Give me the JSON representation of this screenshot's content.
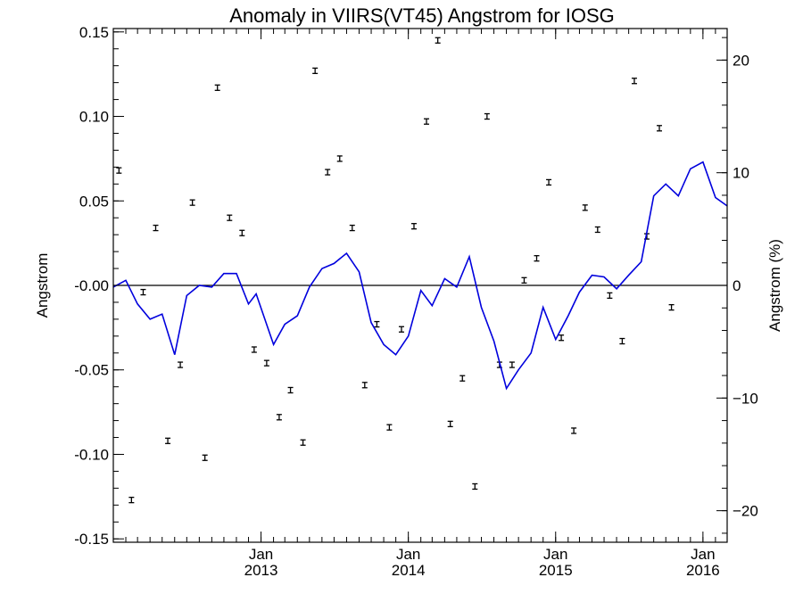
{
  "chart_data": {
    "type": "scatter",
    "title": "Anomaly in VIIRS(VT45) Angstrom for IOSG",
    "ylabel": "Angstrom",
    "ylabel_right": "Angstrom (%)",
    "xlabel": "",
    "ylim": [
      -0.152,
      0.152
    ],
    "ylim_right": [
      -22.8,
      22.8
    ],
    "xlim": [
      "2012-01-01",
      "2016-03-01"
    ],
    "y_ticks": [
      {
        "value": -0.15,
        "label": "-0.15"
      },
      {
        "value": -0.1,
        "label": "-0.10"
      },
      {
        "value": -0.05,
        "label": "-0.05"
      },
      {
        "value": 0.0,
        "label": "-0.00"
      },
      {
        "value": 0.05,
        "label": "0.05"
      },
      {
        "value": 0.1,
        "label": "0.10"
      },
      {
        "value": 0.15,
        "label": "0.15"
      }
    ],
    "y_ticks_right": [
      {
        "value": -20,
        "label": "−20"
      },
      {
        "value": -10,
        "label": "−10"
      },
      {
        "value": 0,
        "label": "0"
      },
      {
        "value": 10,
        "label": "10"
      },
      {
        "value": 20,
        "label": "20"
      }
    ],
    "x_ticks": [
      {
        "date": "2013-01-01",
        "label1": "Jan",
        "label2": "2013"
      },
      {
        "date": "2014-01-01",
        "label1": "Jan",
        "label2": "2014"
      },
      {
        "date": "2015-01-01",
        "label1": "Jan",
        "label2": "2015"
      },
      {
        "date": "2016-01-01",
        "label1": "Jan",
        "label2": "2016"
      }
    ],
    "reference_line": 0,
    "series": [
      {
        "kind": "points_errorbar",
        "color": "#000000",
        "points": [
          {
            "x": "2012-01-15",
            "y": 0.068
          },
          {
            "x": "2012-02-15",
            "y": -0.127
          },
          {
            "x": "2012-03-15",
            "y": -0.004
          },
          {
            "x": "2012-04-15",
            "y": 0.034
          },
          {
            "x": "2012-05-15",
            "y": -0.092
          },
          {
            "x": "2012-06-15",
            "y": -0.047
          },
          {
            "x": "2012-07-15",
            "y": 0.049
          },
          {
            "x": "2012-08-15",
            "y": -0.102
          },
          {
            "x": "2012-09-15",
            "y": 0.117
          },
          {
            "x": "2012-10-15",
            "y": 0.04
          },
          {
            "x": "2012-11-15",
            "y": 0.031
          },
          {
            "x": "2012-12-15",
            "y": -0.038
          },
          {
            "x": "2013-01-15",
            "y": -0.046
          },
          {
            "x": "2013-02-15",
            "y": -0.078
          },
          {
            "x": "2013-03-15",
            "y": -0.062
          },
          {
            "x": "2013-04-15",
            "y": -0.093
          },
          {
            "x": "2013-05-15",
            "y": 0.127
          },
          {
            "x": "2013-06-15",
            "y": 0.067
          },
          {
            "x": "2013-07-15",
            "y": 0.075
          },
          {
            "x": "2013-08-15",
            "y": 0.034
          },
          {
            "x": "2013-09-15",
            "y": -0.059
          },
          {
            "x": "2013-10-15",
            "y": -0.023
          },
          {
            "x": "2013-11-15",
            "y": -0.084
          },
          {
            "x": "2013-12-15",
            "y": -0.026
          },
          {
            "x": "2014-01-15",
            "y": 0.035
          },
          {
            "x": "2014-02-15",
            "y": 0.097
          },
          {
            "x": "2014-03-15",
            "y": 0.145
          },
          {
            "x": "2014-04-15",
            "y": -0.082
          },
          {
            "x": "2014-05-15",
            "y": -0.055
          },
          {
            "x": "2014-06-15",
            "y": -0.119
          },
          {
            "x": "2014-07-15",
            "y": 0.1
          },
          {
            "x": "2014-08-15",
            "y": -0.047
          },
          {
            "x": "2014-09-15",
            "y": -0.047
          },
          {
            "x": "2014-10-15",
            "y": 0.003
          },
          {
            "x": "2014-11-15",
            "y": 0.016
          },
          {
            "x": "2014-12-15",
            "y": 0.061
          },
          {
            "x": "2015-01-15",
            "y": -0.031
          },
          {
            "x": "2015-02-15",
            "y": -0.086
          },
          {
            "x": "2015-03-15",
            "y": 0.046
          },
          {
            "x": "2015-04-15",
            "y": 0.033
          },
          {
            "x": "2015-05-15",
            "y": -0.006
          },
          {
            "x": "2015-06-15",
            "y": -0.033
          },
          {
            "x": "2015-07-15",
            "y": 0.121
          },
          {
            "x": "2015-08-15",
            "y": 0.029
          },
          {
            "x": "2015-09-15",
            "y": 0.093
          },
          {
            "x": "2015-10-15",
            "y": -0.013
          }
        ]
      },
      {
        "kind": "line",
        "color": "#0000dd",
        "points": [
          {
            "x": "2012-01-01",
            "y": -0.001
          },
          {
            "x": "2012-02-01",
            "y": 0.003
          },
          {
            "x": "2012-03-01",
            "y": -0.011
          },
          {
            "x": "2012-04-01",
            "y": -0.02
          },
          {
            "x": "2012-05-01",
            "y": -0.017
          },
          {
            "x": "2012-06-01",
            "y": -0.041
          },
          {
            "x": "2012-07-01",
            "y": -0.006
          },
          {
            "x": "2012-08-01",
            "y": 0.0
          },
          {
            "x": "2012-09-01",
            "y": -0.001
          },
          {
            "x": "2012-10-01",
            "y": 0.007
          },
          {
            "x": "2012-11-01",
            "y": 0.007
          },
          {
            "x": "2012-12-01",
            "y": -0.011
          },
          {
            "x": "2012-12-20",
            "y": -0.005
          },
          {
            "x": "2013-02-01",
            "y": -0.035
          },
          {
            "x": "2013-03-01",
            "y": -0.023
          },
          {
            "x": "2013-04-01",
            "y": -0.018
          },
          {
            "x": "2013-05-01",
            "y": -0.001
          },
          {
            "x": "2013-06-01",
            "y": 0.01
          },
          {
            "x": "2013-07-01",
            "y": 0.013
          },
          {
            "x": "2013-08-01",
            "y": 0.019
          },
          {
            "x": "2013-09-01",
            "y": 0.008
          },
          {
            "x": "2013-10-01",
            "y": -0.022
          },
          {
            "x": "2013-11-01",
            "y": -0.035
          },
          {
            "x": "2013-12-01",
            "y": -0.041
          },
          {
            "x": "2014-01-01",
            "y": -0.03
          },
          {
            "x": "2014-02-01",
            "y": -0.003
          },
          {
            "x": "2014-03-01",
            "y": -0.012
          },
          {
            "x": "2014-04-01",
            "y": 0.004
          },
          {
            "x": "2014-05-01",
            "y": -0.001
          },
          {
            "x": "2014-06-01",
            "y": 0.017
          },
          {
            "x": "2014-07-01",
            "y": -0.013
          },
          {
            "x": "2014-08-01",
            "y": -0.033
          },
          {
            "x": "2014-09-01",
            "y": -0.061
          },
          {
            "x": "2014-10-01",
            "y": -0.05
          },
          {
            "x": "2014-11-01",
            "y": -0.04
          },
          {
            "x": "2014-12-01",
            "y": -0.013
          },
          {
            "x": "2015-01-01",
            "y": -0.032
          },
          {
            "x": "2015-02-01",
            "y": -0.018
          },
          {
            "x": "2015-03-01",
            "y": -0.004
          },
          {
            "x": "2015-04-01",
            "y": 0.006
          },
          {
            "x": "2015-05-01",
            "y": 0.005
          },
          {
            "x": "2015-06-01",
            "y": -0.002
          },
          {
            "x": "2015-07-01",
            "y": 0.006
          },
          {
            "x": "2015-08-01",
            "y": 0.014
          },
          {
            "x": "2015-09-01",
            "y": 0.053
          },
          {
            "x": "2015-10-01",
            "y": 0.06
          },
          {
            "x": "2015-11-01",
            "y": 0.053
          },
          {
            "x": "2015-12-01",
            "y": 0.069
          },
          {
            "x": "2016-01-01",
            "y": 0.073
          },
          {
            "x": "2016-02-01",
            "y": 0.052
          },
          {
            "x": "2016-03-01",
            "y": 0.047
          }
        ]
      }
    ]
  }
}
